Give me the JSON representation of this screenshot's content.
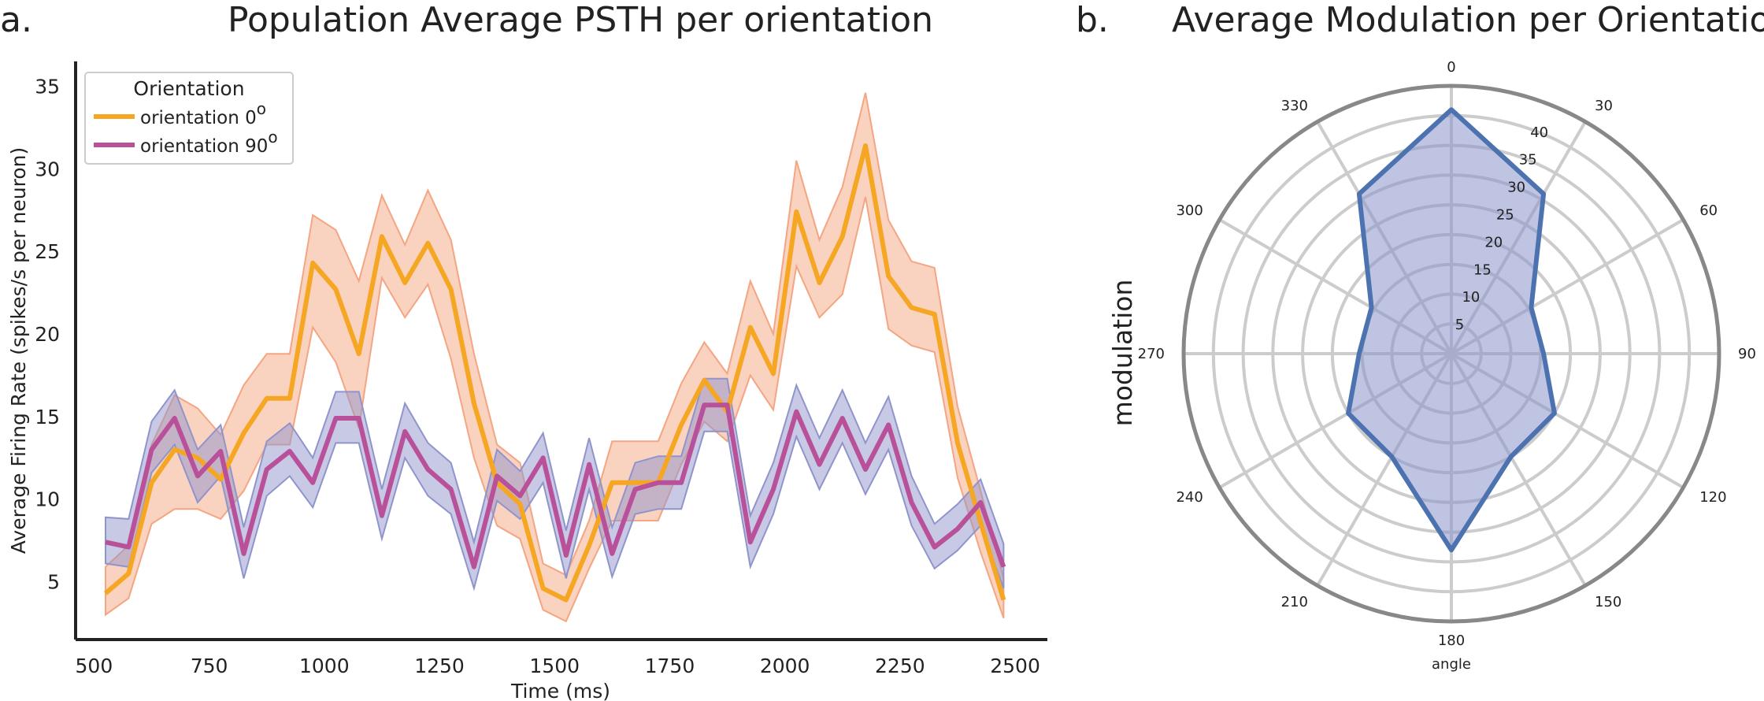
{
  "chart_data": [
    {
      "type": "line",
      "panel_label": "a.",
      "title": "Population Average PSTH per orientation",
      "xlabel": "Time (ms)",
      "ylabel": "Average Firing Rate (spikes/s per neuron)",
      "xlim": [
        460,
        2570
      ],
      "ylim": [
        1.5,
        36.5
      ],
      "xticks": [
        500,
        750,
        1000,
        1250,
        1500,
        1750,
        2000,
        2250,
        2500
      ],
      "yticks": [
        5,
        10,
        15,
        20,
        25,
        30,
        35
      ],
      "grid": false,
      "legend": {
        "title": "Orientation",
        "placement": "top-left",
        "entries": [
          {
            "text": "orientation",
            "value": "0",
            "superscript": "o"
          },
          {
            "text": "orientation",
            "value": "90",
            "superscript": "o"
          }
        ]
      },
      "x": [
        525,
        575,
        625,
        675,
        725,
        775,
        825,
        875,
        925,
        975,
        1025,
        1075,
        1125,
        1175,
        1225,
        1275,
        1325,
        1375,
        1425,
        1475,
        1525,
        1575,
        1625,
        1675,
        1725,
        1775,
        1825,
        1875,
        1925,
        1975,
        2025,
        2075,
        2125,
        2175,
        2225,
        2275,
        2325,
        2375,
        2425,
        2475
      ],
      "series": [
        {
          "name": "orientation 0°",
          "color": "#f5a623",
          "band_color": "#f4a582",
          "values": [
            4.3,
            5.5,
            11.0,
            13.0,
            12.5,
            11.2,
            14.0,
            16.1,
            16.1,
            24.3,
            22.7,
            18.8,
            25.9,
            23.1,
            25.5,
            22.7,
            15.8,
            11.0,
            9.7,
            4.6,
            3.9,
            7.2,
            11.0,
            11.0,
            11.0,
            14.5,
            17.2,
            15.3,
            20.4,
            17.6,
            27.4,
            23.1,
            25.9,
            31.4,
            23.5,
            21.6,
            21.2,
            13.4,
            8.6,
            3.9
          ],
          "ci_low": [
            3.0,
            4.0,
            8.5,
            9.4,
            9.4,
            8.8,
            10.5,
            13.3,
            13.3,
            20.4,
            18.3,
            14.3,
            23.4,
            21.0,
            23.0,
            18.5,
            12.5,
            8.4,
            7.6,
            3.3,
            2.6,
            5.8,
            8.7,
            8.7,
            8.7,
            12.1,
            14.7,
            13.5,
            17.5,
            15.4,
            24.1,
            21.0,
            22.4,
            28.3,
            20.3,
            19.3,
            18.9,
            11.3,
            6.8,
            2.8
          ],
          "ci_high": [
            5.9,
            7.2,
            13.3,
            16.3,
            15.5,
            13.9,
            16.9,
            18.8,
            18.8,
            27.2,
            26.3,
            23.2,
            28.4,
            25.4,
            28.7,
            25.7,
            18.8,
            13.3,
            12.2,
            6.1,
            5.4,
            8.7,
            13.5,
            13.5,
            13.5,
            17.0,
            19.5,
            17.6,
            23.2,
            20.0,
            30.5,
            25.7,
            28.9,
            34.6,
            26.9,
            24.4,
            24.0,
            15.6,
            10.5,
            5.2
          ]
        },
        {
          "name": "orientation 90°",
          "color": "#b8509a",
          "band_color": "#9094cc",
          "values": [
            7.4,
            7.1,
            13.0,
            14.9,
            11.4,
            12.9,
            6.7,
            11.8,
            12.9,
            11.0,
            14.9,
            14.9,
            9.0,
            14.1,
            11.8,
            10.6,
            5.9,
            11.4,
            10.2,
            12.5,
            6.6,
            12.1,
            6.7,
            10.6,
            11.0,
            11.0,
            15.7,
            15.7,
            7.4,
            10.6,
            15.3,
            12.1,
            14.9,
            11.8,
            14.5,
            9.8,
            7.1,
            8.2,
            9.8,
            5.9
          ],
          "ci_low": [
            6.1,
            5.9,
            11.6,
            13.3,
            9.8,
            11.4,
            5.2,
            10.2,
            11.4,
            9.5,
            13.4,
            13.4,
            7.6,
            12.5,
            10.2,
            9.1,
            4.6,
            9.9,
            8.8,
            11.0,
            5.2,
            10.6,
            5.3,
            9.1,
            9.4,
            9.4,
            14.1,
            14.1,
            5.9,
            9.1,
            13.8,
            10.6,
            13.4,
            10.3,
            13.0,
            8.4,
            5.8,
            6.9,
            8.4,
            4.6
          ],
          "ci_high": [
            8.9,
            8.8,
            14.7,
            16.6,
            13.0,
            14.5,
            8.3,
            13.5,
            14.6,
            12.5,
            16.5,
            16.5,
            10.6,
            15.8,
            13.4,
            12.2,
            7.4,
            13.0,
            11.7,
            14.0,
            8.1,
            13.7,
            8.3,
            12.2,
            12.6,
            12.6,
            17.3,
            17.3,
            9.0,
            12.2,
            16.9,
            13.7,
            16.6,
            13.4,
            16.2,
            11.4,
            8.5,
            9.7,
            11.2,
            7.3
          ]
        }
      ]
    },
    {
      "type": "radar",
      "panel_label": "b.",
      "title": "Average Modulation per Orientation",
      "xlabel": "angle",
      "ylabel": "modulation",
      "angle_ticks": [
        "0",
        "30",
        "60",
        "90",
        "120",
        "150",
        "180",
        "210",
        "240",
        "270",
        "300",
        "330"
      ],
      "radial_ticks": [
        "5",
        "10",
        "15",
        "20",
        "25",
        "30",
        "35",
        "40"
      ],
      "rmax": 45,
      "fill_color": "#8893c9",
      "line_color": "#4c72b0",
      "angles": [
        0,
        30,
        60,
        90,
        120,
        150,
        180,
        210,
        240,
        270,
        300,
        330
      ],
      "values": [
        41,
        31,
        15.5,
        15.5,
        20,
        20,
        33,
        20,
        20,
        15.5,
        15.5,
        31
      ]
    }
  ]
}
